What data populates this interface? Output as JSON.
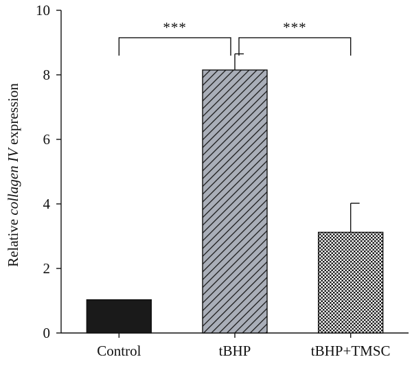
{
  "chart_data": {
    "type": "bar",
    "categories": [
      "Control",
      "tBHP",
      "tBHP+TMSC"
    ],
    "values": [
      1.03,
      8.15,
      3.12
    ],
    "errors": [
      0,
      0.5,
      0.9
    ],
    "bar_styles": [
      {
        "fill": "solid",
        "color": "#1a1a1a"
      },
      {
        "fill": "diagonal-hatch",
        "color": "#a9aeb8",
        "line_color": "#1a1a1a"
      },
      {
        "fill": "crosshatch",
        "color": "#1a1a1a"
      }
    ],
    "ylim": [
      0,
      10
    ],
    "yticks": [
      "0",
      "2",
      "4",
      "6",
      "8",
      "10"
    ],
    "ylabel": {
      "prefix": "Relative ",
      "italic": "collagen IV",
      "suffix": " expression"
    },
    "xlabel": "",
    "title": "",
    "significance": [
      {
        "from": 0,
        "to": 1,
        "label": "***",
        "y": 9.15
      },
      {
        "from": 1,
        "to": 2,
        "label": "***",
        "y": 9.15
      }
    ]
  }
}
